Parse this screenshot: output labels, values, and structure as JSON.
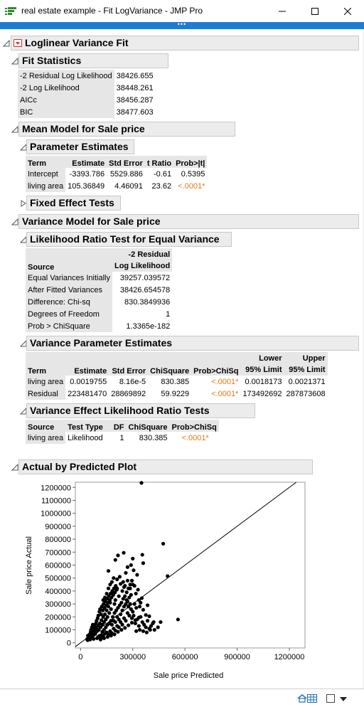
{
  "window": {
    "title": "real estate example - Fit LogVariance - JMP Pro",
    "dots": "•••"
  },
  "sections": {
    "main": "Loglinear Variance Fit",
    "fit_stats": "Fit Statistics",
    "mean_model": "Mean Model for Sale price",
    "param_est": "Parameter Estimates",
    "fixed_effects": "Fixed Effect Tests",
    "var_model": "Variance Model for Sale price",
    "lrt": "Likelihood Ratio Test for Equal Variance",
    "var_param": "Variance Parameter Estimates",
    "var_effect": "Variance Effect Likelihood Ratio Tests",
    "plot": "Actual by Predicted Plot"
  },
  "fit_statistics": [
    {
      "label": "-2 Residual Log Likelihood",
      "value": "38426.655"
    },
    {
      "label": "-2 Log Likelihood",
      "value": "38448.261"
    },
    {
      "label": "AICc",
      "value": "38456.287"
    },
    {
      "label": "BIC",
      "value": "38477.603"
    }
  ],
  "param_estimates": {
    "headers": [
      "Term",
      "Estimate",
      "Std Error",
      "t Ratio",
      "Prob>|t|"
    ],
    "rows": [
      [
        "Intercept",
        "-3393.786",
        "5529.886",
        "-0.61",
        "0.5395"
      ],
      [
        "living area",
        "105.36849",
        "4.46091",
        "23.62",
        "<.0001*"
      ]
    ]
  },
  "lrt": {
    "h_source": "Source",
    "h_col_1": "-2 Residual",
    "h_col_2": "Log Likelihood",
    "rows": [
      [
        "Equal Variances Initially",
        "39257.039572"
      ],
      [
        "After Fitted Variances",
        "38426.654578"
      ],
      [
        "Difference: Chi-sq",
        "830.3849936"
      ],
      [
        "Degrees of Freedom",
        "1"
      ],
      [
        "Prob > ChiSquare",
        "1.3365e-182"
      ]
    ]
  },
  "var_param": {
    "headers": [
      "Term",
      "Estimate",
      "Std Error",
      "ChiSquare",
      "Prob>ChiSq",
      "95% Limit",
      "95% Limit"
    ],
    "headers_top": [
      "Lower",
      "Upper"
    ],
    "rows": [
      [
        "living area",
        "0.0019755",
        "8.16e-5",
        "830.385",
        "<.0001*",
        "0.0018173",
        "0.0021371"
      ],
      [
        "Residual",
        "223481470",
        "28869892",
        "59.9229",
        "<.0001*",
        "173492692",
        "287873608"
      ]
    ]
  },
  "var_effect": {
    "headers": [
      "Source",
      "Test Type",
      "DF",
      "ChiSquare",
      "Prob>ChiSq"
    ],
    "rows": [
      [
        "living area",
        "Likelihood",
        "1",
        "830.385",
        "<.0001*"
      ]
    ]
  },
  "chart_data": {
    "type": "scatter",
    "title": "",
    "xlabel": "Sale price Predicted",
    "ylabel": "Sale price Actual",
    "xlim": [
      -30000,
      1290000
    ],
    "ylim": [
      -40000,
      1240000
    ],
    "x_ticks": [
      0,
      300000,
      600000,
      900000,
      1200000
    ],
    "y_ticks": [
      0,
      100000,
      200000,
      300000,
      400000,
      500000,
      600000,
      700000,
      800000,
      900000,
      1000000,
      1100000,
      1200000
    ],
    "reference_line": "y = x",
    "series": [
      {
        "values": [
          [
            350000,
            1235000
          ],
          [
            475000,
            765000
          ],
          [
            248000,
            695000
          ],
          [
            355000,
            680000
          ],
          [
            215000,
            675000
          ],
          [
            300000,
            650000
          ],
          [
            200000,
            640000
          ],
          [
            360000,
            615000
          ],
          [
            290000,
            600000
          ],
          [
            270000,
            585000
          ],
          [
            160000,
            555000
          ],
          [
            305000,
            560000
          ],
          [
            500000,
            515000
          ],
          [
            260000,
            540000
          ],
          [
            325000,
            525000
          ],
          [
            560000,
            180000
          ],
          [
            460000,
            160000
          ],
          [
            415000,
            150000
          ],
          [
            395000,
            205000
          ],
          [
            360000,
            255000
          ],
          [
            375000,
            215000
          ],
          [
            385000,
            290000
          ],
          [
            352000,
            345000
          ],
          [
            340000,
            280000
          ],
          [
            330000,
            410000
          ],
          [
            318000,
            380000
          ],
          [
            300000,
            450000
          ],
          [
            285000,
            420000
          ],
          [
            270000,
            480000
          ],
          [
            265000,
            390000
          ],
          [
            250000,
            430000
          ],
          [
            240000,
            400000
          ],
          [
            230000,
            455000
          ],
          [
            220000,
            360000
          ],
          [
            210000,
            420000
          ],
          [
            200000,
            330000
          ],
          [
            195000,
            300000
          ],
          [
            185000,
            380000
          ],
          [
            175000,
            260000
          ],
          [
            170000,
            310000
          ],
          [
            165000,
            230000
          ],
          [
            160000,
            280000
          ],
          [
            155000,
            200000
          ],
          [
            150000,
            250000
          ],
          [
            145000,
            180000
          ],
          [
            140000,
            220000
          ],
          [
            135000,
            160000
          ],
          [
            130000,
            200000
          ],
          [
            125000,
            140000
          ],
          [
            120000,
            175000
          ],
          [
            115000,
            120000
          ],
          [
            110000,
            150000
          ],
          [
            105000,
            100000
          ],
          [
            100000,
            130000
          ],
          [
            95000,
            90000
          ],
          [
            90000,
            110000
          ],
          [
            85000,
            70000
          ],
          [
            80000,
            95000
          ],
          [
            75000,
            60000
          ],
          [
            70000,
            80000
          ],
          [
            65000,
            50000
          ],
          [
            60000,
            70000
          ],
          [
            55000,
            40000
          ],
          [
            50000,
            60000
          ],
          [
            45000,
            35000
          ],
          [
            120000,
            60000
          ],
          [
            130000,
            50000
          ],
          [
            140000,
            70000
          ],
          [
            150000,
            80000
          ],
          [
            160000,
            65000
          ],
          [
            170000,
            90000
          ],
          [
            180000,
            75000
          ],
          [
            190000,
            110000
          ],
          [
            200000,
            95000
          ],
          [
            210000,
            130000
          ],
          [
            220000,
            120000
          ],
          [
            230000,
            160000
          ],
          [
            240000,
            140000
          ],
          [
            250000,
            190000
          ],
          [
            260000,
            170000
          ],
          [
            270000,
            230000
          ],
          [
            280000,
            210000
          ],
          [
            290000,
            260000
          ],
          [
            300000,
            240000
          ],
          [
            310000,
            300000
          ],
          [
            320000,
            270000
          ],
          [
            335000,
            330000
          ],
          [
            345000,
            310000
          ],
          [
            180000,
            140000
          ],
          [
            190000,
            170000
          ],
          [
            200000,
            160000
          ],
          [
            210000,
            200000
          ],
          [
            220000,
            180000
          ],
          [
            230000,
            220000
          ],
          [
            240000,
            250000
          ],
          [
            250000,
            280000
          ],
          [
            260000,
            300000
          ],
          [
            270000,
            320000
          ],
          [
            280000,
            350000
          ],
          [
            290000,
            370000
          ],
          [
            100000,
            45000
          ],
          [
            110000,
            55000
          ],
          [
            115000,
            40000
          ],
          [
            125000,
            85000
          ],
          [
            135000,
            100000
          ],
          [
            145000,
            120000
          ],
          [
            155000,
            140000
          ],
          [
            165000,
            150000
          ],
          [
            175000,
            170000
          ],
          [
            185000,
            200000
          ],
          [
            195000,
            230000
          ],
          [
            205000,
            250000
          ],
          [
            215000,
            270000
          ],
          [
            225000,
            290000
          ],
          [
            235000,
            310000
          ],
          [
            245000,
            340000
          ],
          [
            255000,
            360000
          ],
          [
            265000,
            330000
          ],
          [
            275000,
            280000
          ],
          [
            285000,
            300000
          ],
          [
            295000,
            190000
          ],
          [
            305000,
            210000
          ],
          [
            315000,
            150000
          ],
          [
            325000,
            180000
          ],
          [
            335000,
            130000
          ],
          [
            345000,
            200000
          ],
          [
            355000,
            160000
          ],
          [
            365000,
            140000
          ],
          [
            375000,
            120000
          ],
          [
            385000,
            170000
          ],
          [
            395000,
            110000
          ],
          [
            405000,
            130000
          ],
          [
            425000,
            100000
          ],
          [
            445000,
            120000
          ],
          [
            82000,
            120000
          ],
          [
            88000,
            150000
          ],
          [
            92000,
            170000
          ],
          [
            98000,
            190000
          ],
          [
            102000,
            210000
          ],
          [
            108000,
            240000
          ],
          [
            112000,
            260000
          ],
          [
            118000,
            220000
          ],
          [
            122000,
            280000
          ],
          [
            128000,
            250000
          ],
          [
            132000,
            300000
          ],
          [
            138000,
            270000
          ],
          [
            142000,
            320000
          ],
          [
            148000,
            290000
          ],
          [
            152000,
            340000
          ],
          [
            158000,
            310000
          ],
          [
            162000,
            360000
          ],
          [
            168000,
            330000
          ],
          [
            172000,
            380000
          ],
          [
            178000,
            350000
          ],
          [
            182000,
            400000
          ],
          [
            188000,
            370000
          ],
          [
            192000,
            420000
          ],
          [
            198000,
            390000
          ],
          [
            202000,
            440000
          ],
          [
            208000,
            410000
          ],
          [
            60000,
            100000
          ],
          [
            65000,
            120000
          ],
          [
            70000,
            140000
          ],
          [
            75000,
            110000
          ],
          [
            78000,
            130000
          ],
          [
            72000,
            90000
          ],
          [
            68000,
            75000
          ],
          [
            62000,
            55000
          ],
          [
            58000,
            85000
          ],
          [
            52000,
            65000
          ],
          [
            48000,
            45000
          ],
          [
            42000,
            55000
          ],
          [
            38000,
            30000
          ],
          [
            40000,
            20000
          ],
          [
            55000,
            25000
          ],
          [
            75000,
            30000
          ],
          [
            95000,
            35000
          ],
          [
            115000,
            25000
          ],
          [
            135000,
            35000
          ],
          [
            155000,
            45000
          ],
          [
            175000,
            55000
          ],
          [
            195000,
            65000
          ],
          [
            215000,
            85000
          ],
          [
            235000,
            100000
          ],
          [
            255000,
            115000
          ],
          [
            275000,
            135000
          ],
          [
            295000,
            155000
          ],
          [
            315000,
            175000
          ],
          [
            335000,
            195000
          ],
          [
            320000,
            90000
          ],
          [
            340000,
            100000
          ],
          [
            360000,
            90000
          ],
          [
            380000,
            80000
          ],
          [
            400000,
            100000
          ],
          [
            420000,
            160000
          ],
          [
            150000,
            380000
          ],
          [
            160000,
            420000
          ],
          [
            140000,
            350000
          ],
          [
            130000,
            330000
          ],
          [
            170000,
            450000
          ],
          [
            180000,
            470000
          ],
          [
            190000,
            500000
          ],
          [
            210000,
            490000
          ],
          [
            225000,
            510000
          ],
          [
            245000,
            470000
          ],
          [
            255000,
            440000
          ],
          [
            275000,
            420000
          ],
          [
            285000,
            450000
          ],
          [
            295000,
            480000
          ],
          [
            310000,
            440000
          ]
        ]
      }
    ]
  },
  "status": {
    "icons": [
      "home-icon",
      "grid-icon",
      "checkbox-icon",
      "dropdown-icon"
    ]
  }
}
